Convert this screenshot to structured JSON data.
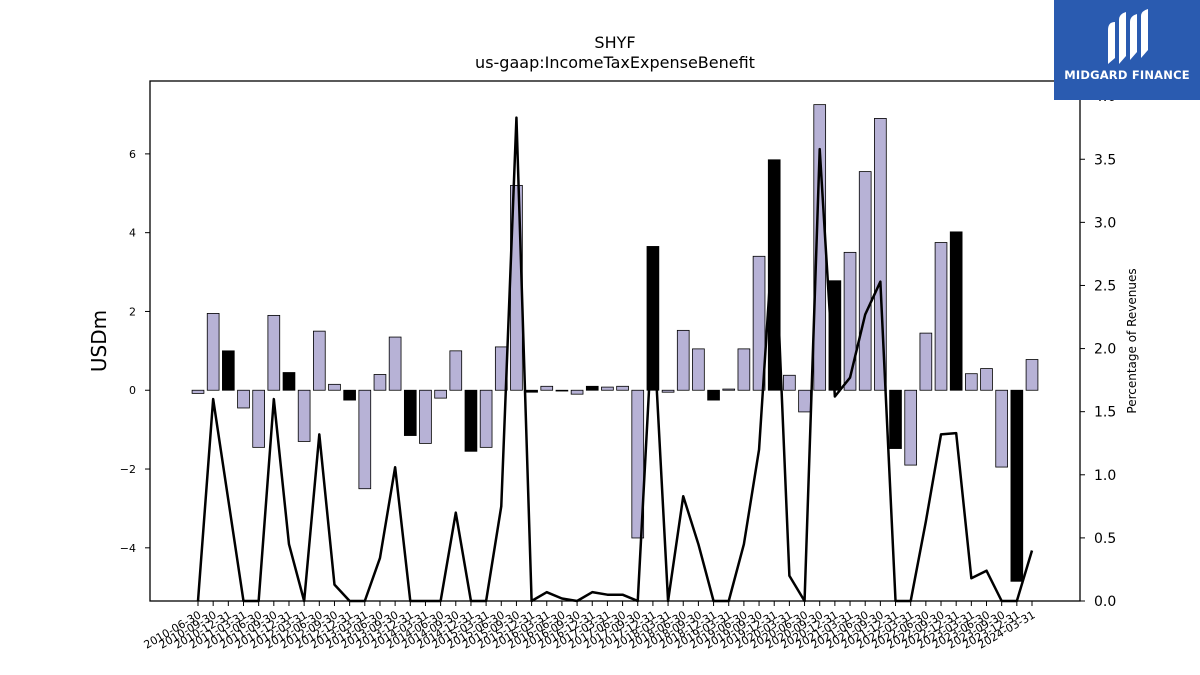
{
  "chart_data": {
    "type": "bar",
    "title": "SHYF",
    "subtitle": "us-gaap:IncomeTaxExpenseBenefit",
    "ylabel": "USDm",
    "y2label": "Percentage of Revenues",
    "ylim": [
      -5.35,
      7.85
    ],
    "y2lim": [
      0.0,
      4.12
    ],
    "yticks": [
      -4,
      -2,
      0,
      2,
      4,
      6
    ],
    "y2ticks": [
      0.0,
      0.5,
      1.0,
      1.5,
      2.0,
      2.5,
      3.0,
      3.5,
      4.0
    ],
    "categories": [
      "2010-06-30",
      "2010-09-30",
      "2010-12-31",
      "2011-03-31",
      "2011-06-30",
      "2011-09-30",
      "2011-12-31",
      "2012-03-31",
      "2012-06-30",
      "2012-09-30",
      "2012-12-31",
      "2013-03-31",
      "2013-06-30",
      "2013-09-30",
      "2013-12-31",
      "2014-03-31",
      "2014-06-30",
      "2014-09-30",
      "2014-12-31",
      "2015-03-31",
      "2015-06-30",
      "2015-09-30",
      "2015-12-31",
      "2016-03-31",
      "2016-06-30",
      "2016-09-30",
      "2016-12-31",
      "2017-03-31",
      "2017-06-30",
      "2017-09-30",
      "2017-12-31",
      "2018-03-31",
      "2018-06-30",
      "2018-09-30",
      "2018-12-31",
      "2019-03-31",
      "2019-06-30",
      "2019-09-30",
      "2019-12-31",
      "2020-03-31",
      "2020-06-30",
      "2020-09-30",
      "2020-12-31",
      "2021-03-31",
      "2021-06-30",
      "2021-09-30",
      "2021-12-31",
      "2022-03-31",
      "2022-06-30",
      "2022-09-30",
      "2022-12-31",
      "2023-03-31",
      "2023-06-30",
      "2023-09-30",
      "2023-12-31",
      "2024-03-31"
    ],
    "values": [
      -0.08,
      1.95,
      1.0,
      -0.45,
      -1.45,
      1.9,
      0.45,
      -1.3,
      1.5,
      0.15,
      -0.25,
      -2.5,
      0.4,
      1.35,
      -1.15,
      -1.35,
      -0.2,
      1.0,
      -1.55,
      -1.45,
      1.1,
      5.2,
      -0.05,
      0.1,
      -0.02,
      -0.1,
      0.1,
      0.08,
      0.1,
      -3.75,
      3.65,
      -0.05,
      1.52,
      1.05,
      -0.25,
      0.03,
      1.05,
      3.4,
      5.85,
      0.38,
      -0.55,
      7.25,
      2.78,
      3.5,
      5.55,
      6.9,
      -1.48,
      -1.9,
      1.45,
      3.75,
      4.02,
      0.42,
      0.55,
      -1.95,
      -4.85,
      0.78
    ],
    "q4_highlight": [
      false,
      false,
      true,
      false,
      false,
      false,
      true,
      false,
      false,
      false,
      true,
      false,
      false,
      false,
      true,
      false,
      false,
      false,
      true,
      false,
      false,
      false,
      true,
      false,
      false,
      false,
      true,
      false,
      false,
      false,
      true,
      false,
      false,
      false,
      true,
      false,
      false,
      false,
      true,
      false,
      false,
      false,
      true,
      false,
      false,
      false,
      true,
      false,
      false,
      false,
      true,
      false,
      false,
      false,
      true,
      false
    ],
    "pct_of_revenues": [
      0,
      1.6,
      0.8,
      0,
      0,
      1.6,
      0.45,
      0,
      1.32,
      0.13,
      0,
      0,
      0.34,
      1.06,
      0,
      0,
      0,
      0.7,
      0,
      0,
      0.75,
      3.83,
      0,
      0.07,
      0.02,
      0,
      0.07,
      0.05,
      0.05,
      0,
      2.25,
      0,
      0.83,
      0.45,
      0,
      0,
      0.45,
      1.2,
      3.05,
      0.2,
      0,
      3.58,
      1.62,
      1.77,
      2.27,
      2.53,
      0,
      0,
      0.63,
      1.32,
      1.33,
      0.18,
      0.24,
      0,
      0,
      0.4
    ],
    "colors": {
      "bar": "#b7b2d6",
      "bar_highlight": "#000000",
      "bar_edge": "#000000",
      "line": "#000000"
    },
    "grid": false,
    "legend": "none"
  },
  "logo": {
    "text": "MIDGARD FINANCE",
    "bg": "#2a5bb0"
  }
}
